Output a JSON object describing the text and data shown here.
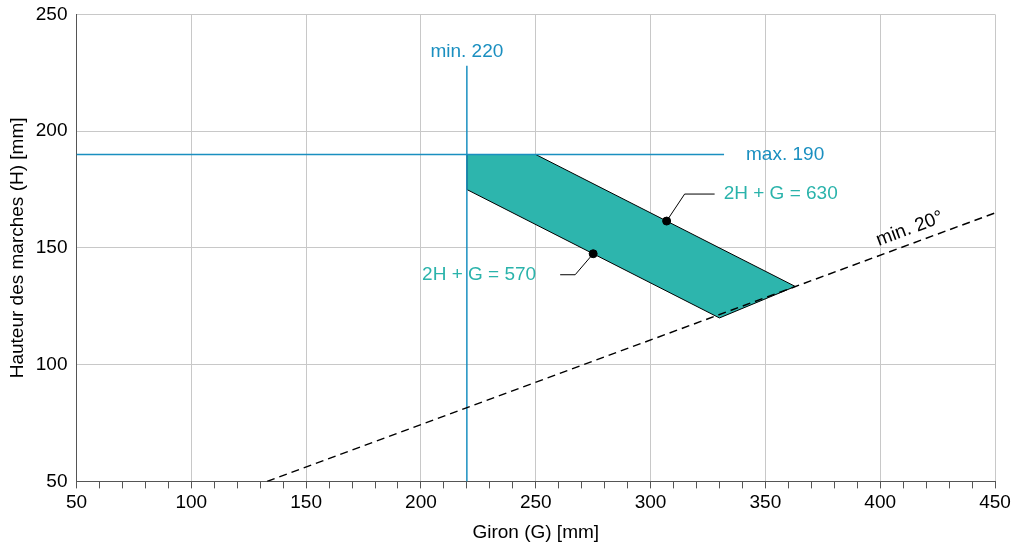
{
  "chart_data": {
    "type": "line",
    "xlabel": "Giron (G) [mm]",
    "ylabel": "Hauteur des marches (H) [mm]",
    "xlim": [
      50,
      450
    ],
    "ylim": [
      50,
      250
    ],
    "xticks": [
      50,
      {
        "value": 60,
        "label": null
      },
      {
        "value": 70,
        "label": null
      },
      {
        "value": 80,
        "label": null
      },
      {
        "value": 90,
        "label": null
      },
      100,
      {
        "value": 110,
        "label": null
      },
      {
        "value": 120,
        "label": null
      },
      {
        "value": 130,
        "label": null
      },
      {
        "value": 140,
        "label": null
      },
      150,
      {
        "value": 160,
        "label": null
      },
      {
        "value": 170,
        "label": null
      },
      {
        "value": 180,
        "label": null
      },
      {
        "value": 190,
        "label": null
      },
      200,
      {
        "value": 210,
        "label": null
      },
      {
        "value": 220,
        "label": null
      },
      {
        "value": 230,
        "label": null
      },
      {
        "value": 240,
        "label": null
      },
      250,
      {
        "value": 260,
        "label": null
      },
      {
        "value": 270,
        "label": null
      },
      {
        "value": 280,
        "label": null
      },
      {
        "value": 290,
        "label": null
      },
      300,
      {
        "value": 310,
        "label": null
      },
      {
        "value": 320,
        "label": null
      },
      {
        "value": 330,
        "label": null
      },
      {
        "value": 340,
        "label": null
      },
      350,
      {
        "value": 360,
        "label": null
      },
      {
        "value": 370,
        "label": null
      },
      {
        "value": 380,
        "label": null
      },
      {
        "value": 390,
        "label": null
      },
      400,
      {
        "value": 410,
        "label": null
      },
      {
        "value": 420,
        "label": null
      },
      {
        "value": 430,
        "label": null
      },
      {
        "value": 440,
        "label": null
      },
      450
    ],
    "yticks": [
      50,
      100,
      150,
      200,
      250
    ],
    "grid": true,
    "series": [
      {
        "type": "area",
        "color": "#2db5ad",
        "x": [
          220,
          250,
          363,
          330,
          220,
          220
        ],
        "values": [
          190,
          190,
          133.5,
          120,
          175,
          190
        ]
      },
      {
        "type": "line",
        "color": "#1a8fc0",
        "x": [
          220,
          220
        ],
        "values": [
          50,
          228
        ],
        "line_style": "solid",
        "marker": "none"
      },
      {
        "type": "line",
        "color": "#1a8fc0",
        "x": [
          50,
          332
        ],
        "values": [
          190,
          190
        ],
        "line_style": "solid",
        "marker": "none"
      },
      {
        "type": "line",
        "color": "#000000",
        "x": [
          133,
          450
        ],
        "values": [
          50,
          165
        ],
        "line_style": "dashed",
        "marker": "none"
      },
      {
        "type": "scatter",
        "color": "#000000",
        "x": [
          307,
          275
        ],
        "values": [
          161.5,
          147.5
        ],
        "marker": "circle"
      }
    ],
    "annotations": [
      {
        "text": "min. 220",
        "x": 220,
        "y": 228
      },
      {
        "text": "max. 190",
        "x": 332,
        "y": 190
      },
      {
        "text": "2H + G = 630",
        "x": 307,
        "y": 161.5
      },
      {
        "text": "2H + G = 570",
        "x": 275,
        "y": 147.5
      },
      {
        "text": "min. 20°",
        "x": 415,
        "y": 152.5
      }
    ]
  }
}
